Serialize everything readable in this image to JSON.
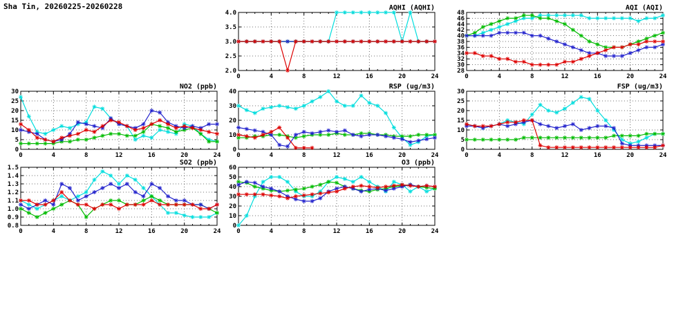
{
  "page_title": "Sha Tin, 20260225-20260228",
  "colors": {
    "red": "#dd0000",
    "green": "#00bb00",
    "blue": "#2222cc",
    "cyan": "#00dddd"
  },
  "chart_data": [
    {
      "id": "aqhi",
      "type": "line",
      "title": "AQHI (AQHI)",
      "xlim": [
        0,
        24
      ],
      "xticks": [
        0,
        4,
        8,
        12,
        16,
        20,
        24
      ],
      "x_step": 1,
      "ylim": [
        2.0,
        4.0
      ],
      "ytick_step": 0.5,
      "ytick_decimals": 1,
      "grid": true,
      "legend": "none",
      "series": [
        {
          "name": "cyan",
          "color": "#00dddd",
          "values": [
            3,
            3,
            3,
            3,
            3,
            3,
            3,
            3,
            3,
            3,
            3,
            3,
            4,
            4,
            4,
            4,
            4,
            4,
            4,
            4,
            3,
            4,
            3,
            3,
            3
          ]
        },
        {
          "name": "green",
          "color": "#00bb00",
          "values": [
            3,
            3,
            3,
            3,
            3,
            3,
            3,
            3,
            3,
            3,
            3,
            3,
            3,
            3,
            3,
            3,
            3,
            3,
            3,
            3,
            3,
            3,
            3,
            3,
            3
          ]
        },
        {
          "name": "blue",
          "color": "#2222cc",
          "values": [
            3,
            3,
            3,
            3,
            3,
            3,
            3,
            3,
            3,
            3,
            3,
            3,
            3,
            3,
            3,
            3,
            3,
            3,
            3,
            3,
            3,
            3,
            3,
            3,
            3
          ]
        },
        {
          "name": "red",
          "color": "#dd0000",
          "values": [
            3,
            3,
            3,
            3,
            3,
            3,
            2,
            3,
            3,
            3,
            3,
            3,
            3,
            3,
            3,
            3,
            3,
            3,
            3,
            3,
            3,
            3,
            3,
            3,
            3
          ]
        }
      ]
    },
    {
      "id": "aqi",
      "type": "line",
      "title": "AQI (AQI)",
      "xlim": [
        0,
        24
      ],
      "xticks": [
        0,
        4,
        8,
        12,
        16,
        20,
        24
      ],
      "x_step": 1,
      "ylim": [
        28,
        48
      ],
      "ytick_step": 2,
      "ytick_decimals": 0,
      "grid": true,
      "legend": "none",
      "series": [
        {
          "name": "cyan",
          "color": "#00dddd",
          "values": [
            40,
            40,
            41,
            42,
            43,
            44,
            45,
            46,
            46,
            47,
            47,
            47,
            47,
            47,
            47,
            46,
            46,
            46,
            46,
            46,
            46,
            45,
            46,
            46,
            47
          ]
        },
        {
          "name": "green",
          "color": "#00bb00",
          "values": [
            40,
            41,
            43,
            44,
            45,
            46,
            46,
            47,
            47,
            46,
            46,
            45,
            44,
            42,
            40,
            38,
            37,
            36,
            36,
            36,
            37,
            38,
            39,
            40,
            41
          ]
        },
        {
          "name": "blue",
          "color": "#2222cc",
          "values": [
            40,
            40,
            40,
            40,
            41,
            41,
            41,
            41,
            40,
            40,
            39,
            38,
            37,
            36,
            35,
            34,
            34,
            33,
            33,
            33,
            34,
            35,
            36,
            36,
            37
          ]
        },
        {
          "name": "red",
          "color": "#dd0000",
          "values": [
            34,
            34,
            33,
            33,
            32,
            32,
            31,
            31,
            30,
            30,
            30,
            30,
            31,
            31,
            32,
            33,
            34,
            35,
            36,
            36,
            37,
            37,
            38,
            38,
            38
          ]
        }
      ]
    },
    {
      "id": "no2",
      "type": "line",
      "title": "NO2 (ppb)",
      "xlim": [
        0,
        24
      ],
      "xticks": [
        0,
        4,
        8,
        12,
        16,
        20,
        24
      ],
      "x_step": 1,
      "ylim": [
        0,
        30
      ],
      "ytick_step": 5,
      "ytick_decimals": 0,
      "grid": true,
      "legend": "none",
      "series": [
        {
          "name": "cyan",
          "color": "#00dddd",
          "values": [
            27,
            17,
            9,
            8,
            10,
            12,
            11,
            13,
            14,
            22,
            21,
            16,
            13,
            12,
            5,
            7,
            6,
            10,
            9,
            8,
            13,
            12,
            8,
            5,
            4
          ]
        },
        {
          "name": "green",
          "color": "#00bb00",
          "values": [
            3,
            3,
            3,
            3,
            3,
            4,
            4,
            5,
            5,
            6,
            7,
            8,
            8,
            7,
            7,
            9,
            13,
            12,
            11,
            9,
            10,
            11,
            8,
            4,
            4
          ]
        },
        {
          "name": "blue",
          "color": "#2222cc",
          "values": [
            10,
            9,
            8,
            5,
            4,
            5,
            8,
            14,
            13,
            12,
            11,
            16,
            13,
            12,
            11,
            13,
            20,
            19,
            14,
            12,
            11,
            12,
            11,
            13,
            13
          ]
        },
        {
          "name": "red",
          "color": "#dd0000",
          "values": [
            13,
            10,
            6,
            5,
            4,
            6,
            7,
            8,
            10,
            9,
            12,
            15,
            14,
            12,
            10,
            11,
            13,
            15,
            13,
            11,
            12,
            11,
            10,
            9,
            8
          ]
        }
      ]
    },
    {
      "id": "rsp",
      "type": "line",
      "title": "RSP (ug/m3)",
      "xlim": [
        0,
        24
      ],
      "xticks": [
        0,
        4,
        8,
        12,
        16,
        20,
        24
      ],
      "x_step": 1,
      "ylim": [
        0,
        40
      ],
      "ytick_step": 10,
      "ytick_decimals": 0,
      "grid": true,
      "legend": "none",
      "series": [
        {
          "name": "cyan",
          "color": "#00dddd",
          "values": [
            30,
            27,
            25,
            28,
            29,
            30,
            29,
            28,
            30,
            33,
            36,
            40,
            33,
            30,
            30,
            37,
            32,
            30,
            25,
            15,
            8,
            3,
            5,
            9,
            10
          ]
        },
        {
          "name": "green",
          "color": "#00bb00",
          "values": [
            8,
            8,
            9,
            9,
            10,
            10,
            9,
            8,
            9,
            10,
            10,
            10,
            11,
            10,
            10,
            11,
            11,
            10,
            10,
            9,
            9,
            9,
            10,
            10,
            10
          ]
        },
        {
          "name": "blue",
          "color": "#2222cc",
          "values": [
            15,
            14,
            13,
            12,
            10,
            3,
            2,
            10,
            12,
            11,
            12,
            13,
            12,
            13,
            10,
            9,
            10,
            10,
            9,
            8,
            7,
            5,
            6,
            7,
            8
          ]
        },
        {
          "name": "red",
          "color": "#dd0000",
          "values": [
            10,
            9,
            8,
            10,
            12,
            15,
            8,
            1,
            1,
            1,
            null,
            null,
            null,
            null,
            null,
            null,
            null,
            null,
            null,
            null,
            null,
            null,
            null,
            null,
            null
          ]
        }
      ]
    },
    {
      "id": "fsp",
      "type": "line",
      "title": "FSP (ug/m3)",
      "xlim": [
        0,
        24
      ],
      "xticks": [
        0,
        4,
        8,
        12,
        16,
        20,
        24
      ],
      "x_step": 1,
      "ylim": [
        0,
        30
      ],
      "ytick_step": 5,
      "ytick_decimals": 0,
      "grid": true,
      "legend": "none",
      "series": [
        {
          "name": "cyan",
          "color": "#00dddd",
          "values": [
            13,
            12,
            11,
            12,
            13,
            15,
            14,
            13,
            18,
            23,
            20,
            19,
            21,
            24,
            27,
            26,
            20,
            15,
            10,
            5,
            3,
            4,
            6,
            8,
            8
          ]
        },
        {
          "name": "green",
          "color": "#00bb00",
          "values": [
            5,
            5,
            5,
            5,
            5,
            5,
            5,
            6,
            6,
            6,
            6,
            6,
            6,
            6,
            6,
            6,
            6,
            6,
            7,
            7,
            7,
            7,
            8,
            8,
            8
          ]
        },
        {
          "name": "blue",
          "color": "#2222cc",
          "values": [
            12,
            12,
            11,
            12,
            13,
            12,
            13,
            14,
            15,
            13,
            12,
            11,
            12,
            13,
            10,
            11,
            12,
            12,
            11,
            3,
            2,
            2,
            2,
            2,
            2
          ]
        },
        {
          "name": "red",
          "color": "#dd0000",
          "values": [
            13,
            12,
            12,
            12,
            13,
            14,
            14,
            15,
            15,
            2,
            1,
            1,
            1,
            1,
            1,
            1,
            1,
            1,
            1,
            1,
            1,
            1,
            1,
            1,
            2
          ]
        }
      ]
    },
    {
      "id": "so2",
      "type": "line",
      "title": "SO2 (ppb)",
      "xlim": [
        0,
        24
      ],
      "xticks": [
        0,
        4,
        8,
        12,
        16,
        20,
        24
      ],
      "x_step": 1,
      "ylim": [
        0.8,
        1.5
      ],
      "ytick_step": 0.1,
      "ytick_decimals": 1,
      "grid": true,
      "legend": "none",
      "series": [
        {
          "name": "cyan",
          "color": "#00dddd",
          "values": [
            1.1,
            1.05,
            1.0,
            1.05,
            1.1,
            1.15,
            1.1,
            1.15,
            1.2,
            1.35,
            1.45,
            1.4,
            1.3,
            1.4,
            1.35,
            1.25,
            1.15,
            1.05,
            0.95,
            0.95,
            0.92,
            0.9,
            0.9,
            0.9,
            0.95
          ]
        },
        {
          "name": "green",
          "color": "#00bb00",
          "values": [
            1.0,
            0.95,
            0.9,
            0.95,
            1.0,
            1.05,
            1.1,
            1.05,
            0.9,
            1.0,
            1.05,
            1.1,
            1.1,
            1.05,
            1.05,
            1.1,
            1.15,
            1.1,
            1.05,
            1.05,
            1.05,
            1.05,
            1.05,
            1.0,
            0.95
          ]
        },
        {
          "name": "blue",
          "color": "#2222cc",
          "values": [
            1.05,
            1.0,
            1.05,
            1.1,
            1.05,
            1.3,
            1.25,
            1.1,
            1.15,
            1.2,
            1.25,
            1.3,
            1.25,
            1.3,
            1.2,
            1.15,
            1.3,
            1.25,
            1.15,
            1.1,
            1.1,
            1.05,
            1.05,
            1.0,
            1.05
          ]
        },
        {
          "name": "red",
          "color": "#dd0000",
          "values": [
            1.1,
            1.1,
            1.05,
            1.05,
            1.1,
            1.2,
            1.1,
            1.05,
            1.05,
            1.0,
            1.05,
            1.05,
            1.0,
            1.05,
            1.05,
            1.05,
            1.1,
            1.05,
            1.05,
            1.05,
            1.05,
            1.05,
            1.0,
            1.0,
            1.05
          ]
        }
      ]
    },
    {
      "id": "o3",
      "type": "line",
      "title": "O3 (ppb)",
      "xlim": [
        0,
        24
      ],
      "xticks": [
        0,
        4,
        8,
        12,
        16,
        20,
        24
      ],
      "x_step": 1,
      "ylim": [
        0,
        60
      ],
      "ytick_step": 10,
      "ytick_decimals": 0,
      "grid": true,
      "legend": "none",
      "series": [
        {
          "name": "cyan",
          "color": "#00dddd",
          "values": [
            0,
            10,
            30,
            45,
            50,
            50,
            45,
            35,
            30,
            30,
            35,
            45,
            50,
            48,
            45,
            50,
            45,
            40,
            35,
            45,
            42,
            35,
            40,
            35,
            38
          ]
        },
        {
          "name": "green",
          "color": "#00bb00",
          "values": [
            45,
            44,
            40,
            38,
            36,
            35,
            36,
            37,
            38,
            40,
            42,
            45,
            44,
            40,
            38,
            36,
            35,
            37,
            38,
            40,
            41,
            42,
            40,
            39,
            38
          ]
        },
        {
          "name": "blue",
          "color": "#2222cc",
          "values": [
            42,
            45,
            44,
            40,
            38,
            35,
            30,
            27,
            25,
            25,
            28,
            35,
            38,
            40,
            38,
            35,
            37,
            38,
            36,
            38,
            40,
            42,
            40,
            41,
            40
          ]
        },
        {
          "name": "red",
          "color": "#dd0000",
          "values": [
            32,
            32,
            32,
            32,
            31,
            30,
            28,
            30,
            31,
            32,
            33,
            34,
            35,
            38,
            40,
            41,
            40,
            39,
            40,
            41,
            42,
            41,
            40,
            41,
            40
          ]
        }
      ]
    }
  ]
}
